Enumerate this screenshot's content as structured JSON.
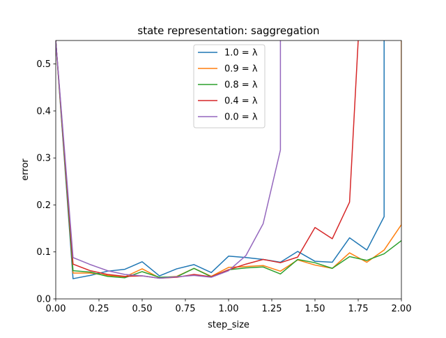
{
  "chart_data": {
    "type": "line",
    "title": "state representation: saggregation",
    "xlabel": "step_size",
    "ylabel": "error",
    "xlim": [
      0,
      2
    ],
    "ylim": [
      0,
      0.55
    ],
    "xticks": [
      0.0,
      0.25,
      0.5,
      0.75,
      1.0,
      1.25,
      1.5,
      1.75,
      2.0
    ],
    "xtick_labels": [
      "0.00",
      "0.25",
      "0.50",
      "0.75",
      "1.00",
      "1.25",
      "1.50",
      "1.75",
      "2.00"
    ],
    "yticks": [
      0.0,
      0.1,
      0.2,
      0.3,
      0.4,
      0.5
    ],
    "ytick_labels": [
      "0.0",
      "0.1",
      "0.2",
      "0.3",
      "0.4",
      "0.5"
    ],
    "grid": false,
    "legend_position": "top-center",
    "series": [
      {
        "name": "1.0 = λ",
        "color": "#1f77b4",
        "points": [
          [
            0.0,
            0.55
          ],
          [
            0.1,
            0.043
          ],
          [
            0.2,
            0.05
          ],
          [
            0.3,
            0.059
          ],
          [
            0.4,
            0.063
          ],
          [
            0.5,
            0.079
          ],
          [
            0.6,
            0.049
          ],
          [
            0.7,
            0.064
          ],
          [
            0.8,
            0.073
          ],
          [
            0.9,
            0.056
          ],
          [
            1.0,
            0.091
          ],
          [
            1.1,
            0.088
          ],
          [
            1.2,
            0.084
          ],
          [
            1.3,
            0.078
          ],
          [
            1.4,
            0.101
          ],
          [
            1.5,
            0.08
          ],
          [
            1.6,
            0.078
          ],
          [
            1.7,
            0.13
          ],
          [
            1.8,
            0.104
          ],
          [
            1.9,
            0.175
          ],
          [
            1.9,
            0.55
          ]
        ]
      },
      {
        "name": "0.9 = λ",
        "color": "#ff7f0e",
        "points": [
          [
            0.0,
            0.55
          ],
          [
            0.1,
            0.055
          ],
          [
            0.2,
            0.055
          ],
          [
            0.3,
            0.05
          ],
          [
            0.4,
            0.047
          ],
          [
            0.5,
            0.064
          ],
          [
            0.6,
            0.045
          ],
          [
            0.7,
            0.048
          ],
          [
            0.8,
            0.065
          ],
          [
            0.9,
            0.048
          ],
          [
            1.0,
            0.067
          ],
          [
            1.1,
            0.069
          ],
          [
            1.2,
            0.071
          ],
          [
            1.3,
            0.059
          ],
          [
            1.4,
            0.083
          ],
          [
            1.5,
            0.072
          ],
          [
            1.6,
            0.065
          ],
          [
            1.7,
            0.098
          ],
          [
            1.8,
            0.078
          ],
          [
            1.9,
            0.104
          ],
          [
            2.0,
            0.158
          ],
          [
            2.0,
            0.55
          ]
        ]
      },
      {
        "name": "0.8 = λ",
        "color": "#2ca02c",
        "points": [
          [
            0.0,
            0.55
          ],
          [
            0.1,
            0.06
          ],
          [
            0.2,
            0.057
          ],
          [
            0.3,
            0.048
          ],
          [
            0.4,
            0.045
          ],
          [
            0.5,
            0.058
          ],
          [
            0.6,
            0.046
          ],
          [
            0.7,
            0.047
          ],
          [
            0.8,
            0.065
          ],
          [
            0.9,
            0.047
          ],
          [
            1.0,
            0.062
          ],
          [
            1.1,
            0.066
          ],
          [
            1.2,
            0.068
          ],
          [
            1.3,
            0.053
          ],
          [
            1.4,
            0.084
          ],
          [
            1.5,
            0.077
          ],
          [
            1.6,
            0.065
          ],
          [
            1.7,
            0.09
          ],
          [
            1.8,
            0.082
          ],
          [
            1.9,
            0.096
          ],
          [
            2.0,
            0.124
          ]
        ]
      },
      {
        "name": "0.4 = λ",
        "color": "#d62728",
        "points": [
          [
            0.0,
            0.55
          ],
          [
            0.1,
            0.074
          ],
          [
            0.2,
            0.06
          ],
          [
            0.3,
            0.052
          ],
          [
            0.4,
            0.048
          ],
          [
            0.5,
            0.049
          ],
          [
            0.6,
            0.044
          ],
          [
            0.7,
            0.046
          ],
          [
            0.8,
            0.052
          ],
          [
            0.9,
            0.047
          ],
          [
            1.0,
            0.062
          ],
          [
            1.1,
            0.074
          ],
          [
            1.2,
            0.084
          ],
          [
            1.3,
            0.077
          ],
          [
            1.4,
            0.089
          ],
          [
            1.5,
            0.152
          ],
          [
            1.6,
            0.128
          ],
          [
            1.7,
            0.206
          ],
          [
            1.75,
            0.55
          ]
        ]
      },
      {
        "name": "0.0 = λ",
        "color": "#9467bd",
        "points": [
          [
            0.0,
            0.55
          ],
          [
            0.1,
            0.088
          ],
          [
            0.2,
            0.073
          ],
          [
            0.3,
            0.06
          ],
          [
            0.4,
            0.052
          ],
          [
            0.5,
            0.049
          ],
          [
            0.6,
            0.044
          ],
          [
            0.7,
            0.047
          ],
          [
            0.8,
            0.05
          ],
          [
            0.9,
            0.046
          ],
          [
            1.0,
            0.06
          ],
          [
            1.1,
            0.092
          ],
          [
            1.2,
            0.16
          ],
          [
            1.3,
            0.317
          ],
          [
            1.3,
            0.55
          ]
        ]
      }
    ]
  }
}
